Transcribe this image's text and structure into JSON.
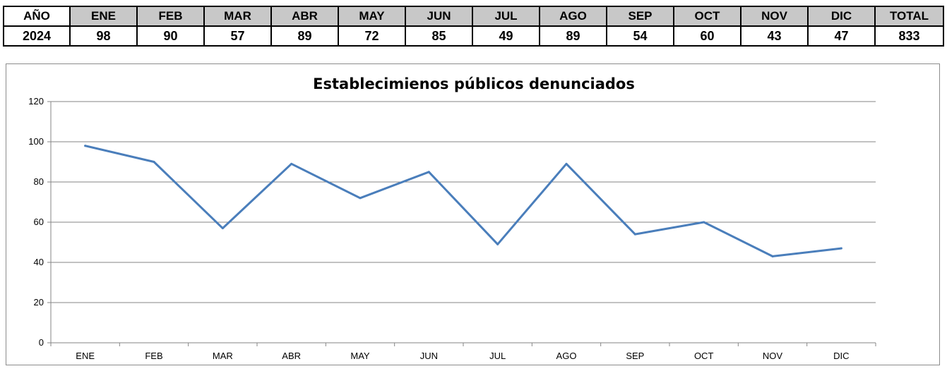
{
  "table": {
    "header": [
      "AÑO",
      "ENE",
      "FEB",
      "MAR",
      "ABR",
      "MAY",
      "JUN",
      "JUL",
      "AGO",
      "SEP",
      "OCT",
      "NOV",
      "DIC",
      "TOTAL"
    ],
    "row": [
      "2024",
      "98",
      "90",
      "57",
      "89",
      "72",
      "85",
      "49",
      "89",
      "54",
      "60",
      "43",
      "47",
      "833"
    ]
  },
  "chart_data": {
    "type": "line",
    "title": "Establecimienos públicos denunciados",
    "categories": [
      "ENE",
      "FEB",
      "MAR",
      "ABR",
      "MAY",
      "JUN",
      "JUL",
      "AGO",
      "SEP",
      "OCT",
      "NOV",
      "DIC"
    ],
    "series": [
      {
        "values": [
          98,
          90,
          57,
          89,
          72,
          85,
          49,
          89,
          54,
          60,
          43,
          47
        ],
        "color": "#4a7ebb"
      }
    ],
    "ylim": [
      0,
      120
    ],
    "yticks": [
      0,
      20,
      40,
      60,
      80,
      100,
      120
    ],
    "xlabel": "",
    "ylabel": "",
    "grid": true,
    "legend": "none"
  }
}
